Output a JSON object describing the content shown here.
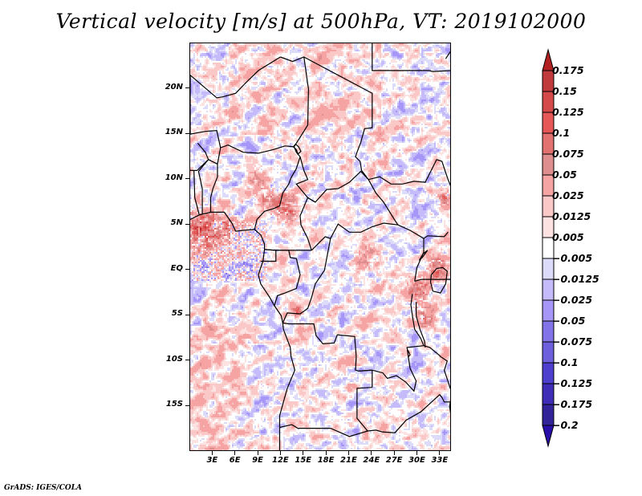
{
  "title": "Vertical velocity [m/s] at 500hPa, VT: 2019102000",
  "footer": "GrADS: IGES/COLA",
  "map": {
    "variable": "Vertical velocity",
    "units": "m/s",
    "level": "500hPa",
    "valid_time": "2019102000",
    "lon_range": [
      0,
      34.5
    ],
    "lat_range": [
      -20,
      25
    ],
    "y_ticks": [
      {
        "label": "20N",
        "lat": 20
      },
      {
        "label": "15N",
        "lat": 15
      },
      {
        "label": "10N",
        "lat": 10
      },
      {
        "label": "5N",
        "lat": 5
      },
      {
        "label": "EQ",
        "lat": 0
      },
      {
        "label": "5S",
        "lat": -5
      },
      {
        "label": "10S",
        "lat": -10
      },
      {
        "label": "15S",
        "lat": -15
      }
    ],
    "x_ticks": [
      {
        "label": "3E",
        "lon": 3
      },
      {
        "label": "6E",
        "lon": 6
      },
      {
        "label": "9E",
        "lon": 9
      },
      {
        "label": "12E",
        "lon": 12
      },
      {
        "label": "15E",
        "lon": 15
      },
      {
        "label": "18E",
        "lon": 18
      },
      {
        "label": "21E",
        "lon": 21
      },
      {
        "label": "24E",
        "lon": 24
      },
      {
        "label": "27E",
        "lon": 27
      },
      {
        "label": "30E",
        "lon": 30
      },
      {
        "label": "33E",
        "lon": 33
      }
    ]
  },
  "colorbar": {
    "levels": [
      "0.175",
      "0.15",
      "0.125",
      "0.1",
      "0.075",
      "0.05",
      "0.025",
      "0.0125",
      "0.005",
      "-0.005",
      "-0.0125",
      "-0.025",
      "-0.05",
      "-0.075",
      "-0.1",
      "-0.125",
      "-0.175",
      "-0.2"
    ],
    "colors": [
      "#b22222",
      "#c0393b",
      "#d44a4a",
      "#e65858",
      "#e2726f",
      "#de8e8e",
      "#f5a3a3",
      "#fbc8c8",
      "#fde2e2",
      "#ffffff",
      "#dcdcfa",
      "#c5bbfa",
      "#a596f8",
      "#8373e9",
      "#6e5fdc",
      "#4f3fcf",
      "#3f2db8",
      "#322399",
      "#2a0ea8"
    ],
    "top_arrow_color": "#b22222",
    "bottom_arrow_color": "#2a0ea8"
  }
}
